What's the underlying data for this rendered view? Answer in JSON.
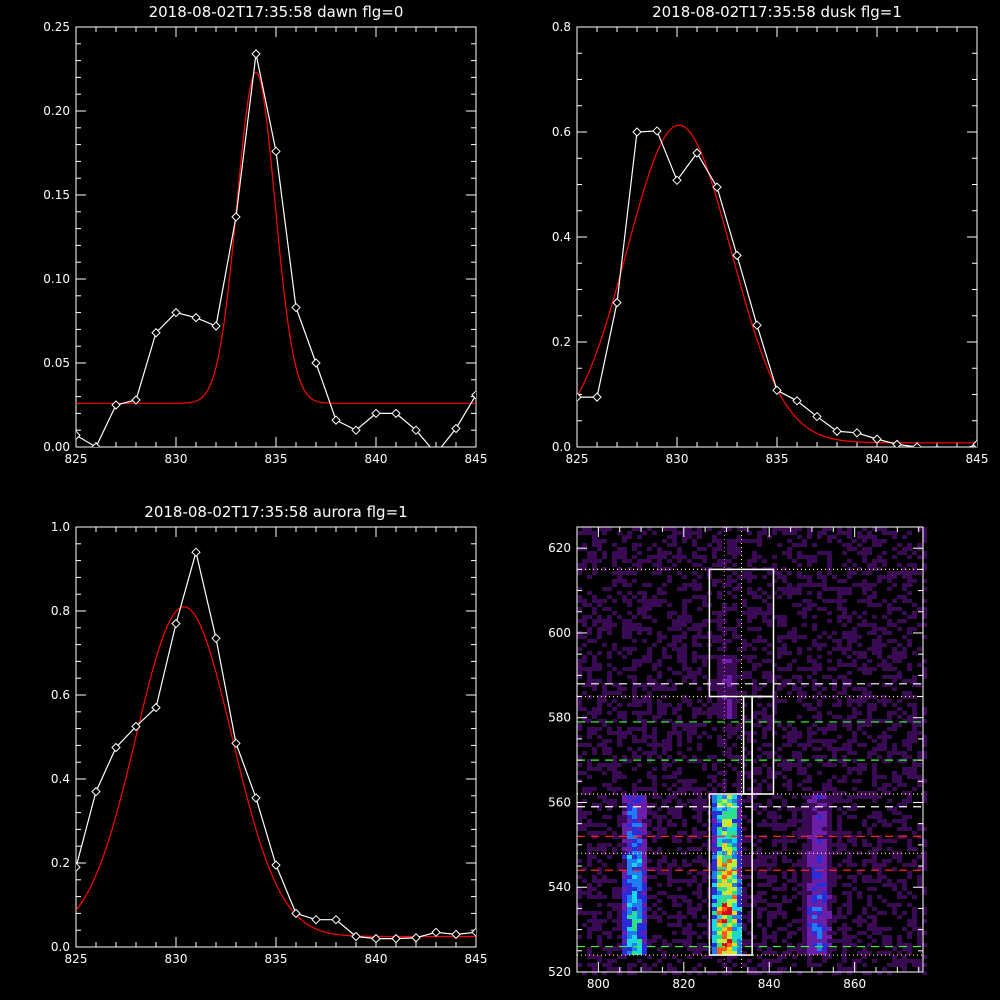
{
  "colors": {
    "data": "#ffffff",
    "fit": "#ff0000",
    "background": "#000000",
    "axis": "#ffffff"
  },
  "chart_data": [
    {
      "type": "line",
      "title": "2018-08-02T17:35:58 dawn flg=0",
      "xlim": [
        825,
        845
      ],
      "ylim": [
        0,
        0.25
      ],
      "xticks": [
        "825",
        "830",
        "835",
        "840",
        "845"
      ],
      "yticks": [
        "0.00",
        "0.05",
        "0.10",
        "0.15",
        "0.20",
        "0.25"
      ],
      "series": [
        {
          "style": "line-diamond",
          "color": "#ffffff",
          "x": [
            825,
            826,
            827,
            828,
            829,
            830,
            831,
            832,
            833,
            834,
            835,
            836,
            837,
            838,
            839,
            840,
            841,
            842,
            843,
            844,
            845
          ],
          "y": [
            0.007,
            0.0,
            0.025,
            0.028,
            0.068,
            0.08,
            0.077,
            0.072,
            0.137,
            0.234,
            0.176,
            0.083,
            0.05,
            0.016,
            0.01,
            0.02,
            0.02,
            0.01,
            -0.004,
            0.011,
            0.031
          ]
        },
        {
          "style": "fit",
          "color": "#ff0000",
          "model": "gaussian",
          "baseline": 0.026,
          "amplitude": 0.197,
          "center": 834.0,
          "sigma": 0.95
        }
      ]
    },
    {
      "type": "line",
      "title": "2018-08-02T17:35:58 dusk flg=1",
      "xlim": [
        825,
        845
      ],
      "ylim": [
        0,
        0.8
      ],
      "xticks": [
        "825",
        "830",
        "835",
        "840",
        "845"
      ],
      "yticks": [
        "0.0",
        "0.2",
        "0.4",
        "0.6",
        "0.8"
      ],
      "series": [
        {
          "style": "line-diamond",
          "color": "#ffffff",
          "x": [
            825,
            826,
            827,
            828,
            829,
            830,
            831,
            832,
            833,
            834,
            835,
            836,
            837,
            838,
            839,
            840,
            841,
            842,
            843,
            844,
            845
          ],
          "y": [
            0.095,
            0.095,
            0.275,
            0.6,
            0.602,
            0.508,
            0.56,
            0.495,
            0.365,
            0.232,
            0.108,
            0.088,
            0.058,
            0.03,
            0.027,
            0.015,
            0.005,
            0.0,
            -0.005,
            -0.008,
            0.005
          ]
        },
        {
          "style": "fit",
          "color": "#ff0000",
          "model": "gaussian",
          "baseline": 0.008,
          "amplitude": 0.605,
          "center": 830.1,
          "sigma": 2.6
        }
      ]
    },
    {
      "type": "line",
      "title": "2018-08-02T17:35:58 aurora flg=1",
      "xlim": [
        825,
        845
      ],
      "ylim": [
        0,
        1.0
      ],
      "xticks": [
        "825",
        "830",
        "835",
        "840",
        "845"
      ],
      "yticks": [
        "0.0",
        "0.2",
        "0.4",
        "0.6",
        "0.8",
        "1.0"
      ],
      "series": [
        {
          "style": "line-diamond",
          "color": "#ffffff",
          "x": [
            825,
            826,
            827,
            828,
            829,
            830,
            831,
            832,
            833,
            834,
            835,
            836,
            837,
            838,
            839,
            840,
            841,
            842,
            843,
            844,
            845
          ],
          "y": [
            0.19,
            0.37,
            0.475,
            0.525,
            0.57,
            0.77,
            0.94,
            0.735,
            0.485,
            0.355,
            0.195,
            0.08,
            0.065,
            0.065,
            0.025,
            0.02,
            0.02,
            0.022,
            0.035,
            0.03,
            0.035
          ]
        },
        {
          "style": "fit",
          "color": "#ff0000",
          "model": "gaussian",
          "baseline": 0.025,
          "amplitude": 0.785,
          "center": 830.4,
          "sigma": 2.4
        }
      ]
    },
    {
      "type": "heatmap",
      "xlim": [
        795,
        876
      ],
      "ylim": [
        520,
        625
      ],
      "xticks": [
        "800",
        "820",
        "840",
        "860"
      ],
      "yticks": [
        "520",
        "540",
        "560",
        "580",
        "600",
        "620"
      ],
      "colormap": [
        "#000000",
        "#3a0a55",
        "#6b1fa8",
        "#2b2bd8",
        "#1e7df0",
        "#19d6e6",
        "#2ce08a",
        "#b8f03c",
        "#ffd21a",
        "#ff5a12",
        "#e00000"
      ],
      "emission_columns": [
        {
          "x_from": 805,
          "x_to": 812,
          "y_from": 524,
          "y_to": 562,
          "peak": 0.55
        },
        {
          "x_from": 826,
          "x_to": 834,
          "y_from": 524,
          "y_to": 562,
          "peak": 1.0
        },
        {
          "x_from": 848,
          "x_to": 855,
          "y_from": 524,
          "y_to": 562,
          "peak": 0.35
        },
        {
          "x_from": 828,
          "x_to": 833,
          "y_from": 580,
          "y_to": 595,
          "peak": 0.25
        }
      ],
      "boxes": [
        {
          "x_from": 826,
          "x_to": 841,
          "y_from": 585,
          "y_to": 615,
          "color": "#ffffff"
        },
        {
          "x_from": 826,
          "x_to": 836,
          "y_from": 524,
          "y_to": 562,
          "color": "#ffffff"
        },
        {
          "x_from": 834,
          "x_to": 836,
          "y_from": 562,
          "y_to": 585,
          "color": "#ffffff"
        },
        {
          "x_from": 836,
          "x_to": 841,
          "y_from": 562,
          "y_to": 585,
          "color": "#ffffff"
        }
      ],
      "hlines": [
        {
          "y": 615,
          "color": "#ffff66",
          "style": "dotted"
        },
        {
          "y": 588,
          "color": "#ffffff",
          "style": "dashed"
        },
        {
          "y": 585,
          "color": "#ffff66",
          "style": "dotted"
        },
        {
          "y": 579,
          "color": "#33ff33",
          "style": "dashed"
        },
        {
          "y": 570,
          "color": "#33ff33",
          "style": "dashed"
        },
        {
          "y": 562,
          "color": "#ffff66",
          "style": "dotted"
        },
        {
          "y": 559,
          "color": "#ffffff",
          "style": "dashed"
        },
        {
          "y": 552,
          "color": "#ff2222",
          "style": "dashed"
        },
        {
          "y": 548,
          "color": "#ffff66",
          "style": "dotted"
        },
        {
          "y": 544,
          "color": "#ff2222",
          "style": "dashed"
        },
        {
          "y": 526,
          "color": "#33ff33",
          "style": "dashed"
        },
        {
          "y": 524,
          "color": "#ffff66",
          "style": "dotted"
        }
      ],
      "vlines": [
        {
          "x": 829.5,
          "color": "#ff66ff",
          "style": "dotted"
        },
        {
          "x": 833.5,
          "color": "#ffff66",
          "style": "dotted"
        }
      ]
    }
  ]
}
